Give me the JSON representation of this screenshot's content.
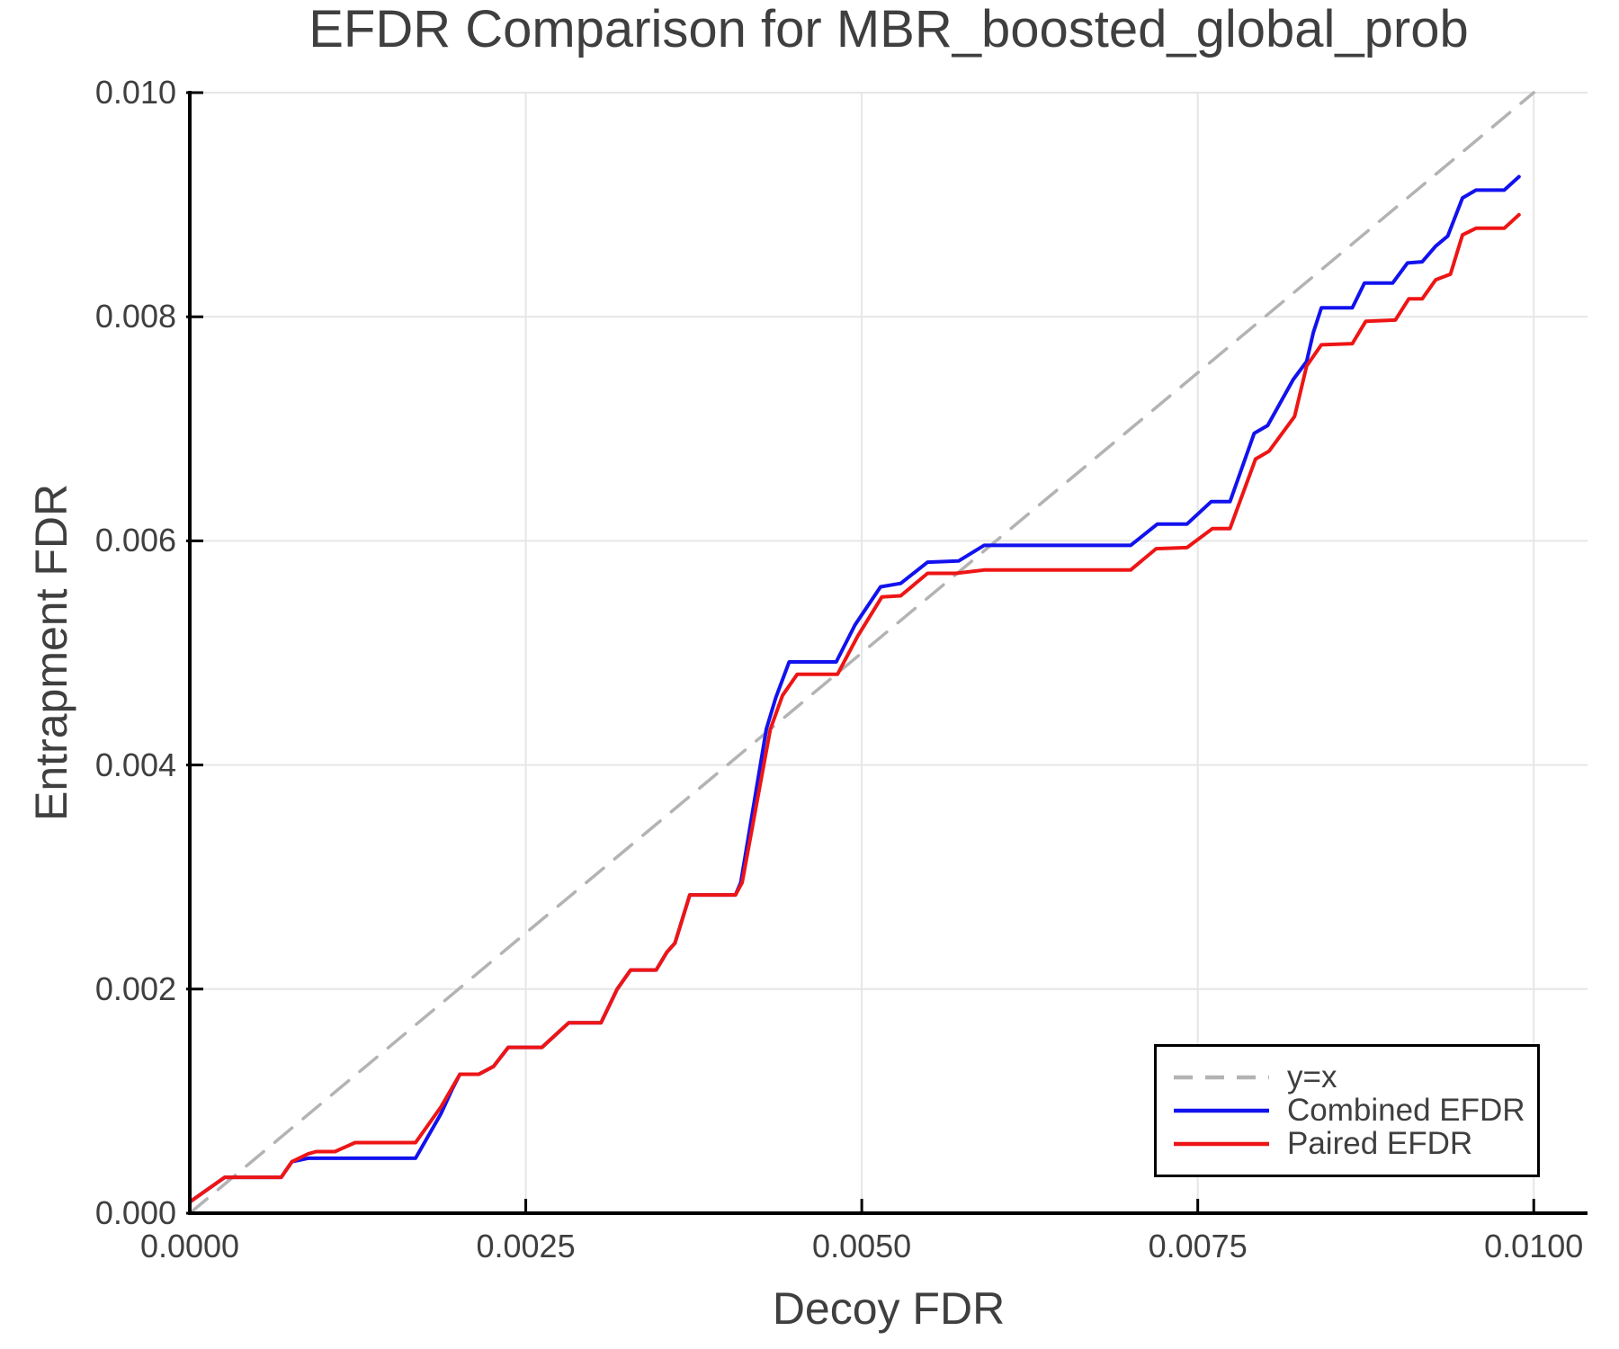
{
  "colors": {
    "background": "#ffffff",
    "text": "#3f3f3f",
    "spine": "#000000",
    "grid": "#e6e6e6",
    "identity_line": "#b3b3b3",
    "combined_efdr": "#1212ee",
    "paired_efdr": "#ee1515"
  },
  "chart_data": {
    "type": "line",
    "title": "EFDR Comparison for MBR_boosted_global_prob",
    "xlabel": "Decoy FDR",
    "ylabel": "Entrapment FDR",
    "xlim": [
      0,
      0.0104
    ],
    "ylim": [
      0,
      0.01
    ],
    "grid": true,
    "legend_position": "lower right",
    "x_ticks": [
      {
        "value": 0.0,
        "label": "0.0000"
      },
      {
        "value": 0.0025,
        "label": "0.0025"
      },
      {
        "value": 0.005,
        "label": "0.0050"
      },
      {
        "value": 0.0075,
        "label": "0.0075"
      },
      {
        "value": 0.01,
        "label": "0.0100"
      }
    ],
    "y_ticks": [
      {
        "value": 0.0,
        "label": "0.000"
      },
      {
        "value": 0.002,
        "label": "0.002"
      },
      {
        "value": 0.004,
        "label": "0.004"
      },
      {
        "value": 0.006,
        "label": "0.006"
      },
      {
        "value": 0.008,
        "label": "0.008"
      },
      {
        "value": 0.01,
        "label": "0.010"
      }
    ],
    "series": [
      {
        "name": "y=x",
        "color": "#b3b3b3",
        "style": "dashed",
        "width": 3.5,
        "points": [
          [
            0.0,
            0.0
          ],
          [
            0.01,
            0.01
          ]
        ]
      },
      {
        "name": "Combined EFDR",
        "color": "#1212ee",
        "style": "solid",
        "width": 4,
        "points": [
          [
            0.0,
            0.0001
          ],
          [
            0.00026,
            0.00032
          ],
          [
            0.00068,
            0.00032
          ],
          [
            0.00076,
            0.00046
          ],
          [
            0.00088,
            0.00049
          ],
          [
            0.00168,
            0.00049
          ],
          [
            0.00187,
            0.00089
          ],
          [
            0.00195,
            0.0011
          ],
          [
            0.00201,
            0.00124
          ],
          [
            0.00215,
            0.00124
          ],
          [
            0.00226,
            0.00131
          ],
          [
            0.00237,
            0.00148
          ],
          [
            0.00262,
            0.00148
          ],
          [
            0.00282,
            0.0017
          ],
          [
            0.00306,
            0.0017
          ],
          [
            0.00318,
            0.002
          ],
          [
            0.00328,
            0.00217
          ],
          [
            0.00347,
            0.00217
          ],
          [
            0.00355,
            0.00233
          ],
          [
            0.00361,
            0.00241
          ],
          [
            0.00372,
            0.00284
          ],
          [
            0.00406,
            0.00284
          ],
          [
            0.0041,
            0.00295
          ],
          [
            0.00429,
            0.00432
          ],
          [
            0.00436,
            0.0046
          ],
          [
            0.00446,
            0.00492
          ],
          [
            0.00481,
            0.00492
          ],
          [
            0.00495,
            0.00525
          ],
          [
            0.00514,
            0.00559
          ],
          [
            0.00529,
            0.00562
          ],
          [
            0.00549,
            0.00581
          ],
          [
            0.00572,
            0.00582
          ],
          [
            0.00591,
            0.00596
          ],
          [
            0.007,
            0.00596
          ],
          [
            0.0072,
            0.00615
          ],
          [
            0.00742,
            0.00615
          ],
          [
            0.0076,
            0.00635
          ],
          [
            0.00774,
            0.00635
          ],
          [
            0.00792,
            0.00696
          ],
          [
            0.00802,
            0.00703
          ],
          [
            0.00821,
            0.00744
          ],
          [
            0.00831,
            0.0076
          ],
          [
            0.00836,
            0.00786
          ],
          [
            0.00842,
            0.00808
          ],
          [
            0.00865,
            0.00808
          ],
          [
            0.00874,
            0.0083
          ],
          [
            0.00895,
            0.0083
          ],
          [
            0.00906,
            0.00848
          ],
          [
            0.00917,
            0.00849
          ],
          [
            0.00927,
            0.00863
          ],
          [
            0.00936,
            0.00872
          ],
          [
            0.00947,
            0.00906
          ],
          [
            0.00957,
            0.00913
          ],
          [
            0.00978,
            0.00913
          ],
          [
            0.00989,
            0.00925
          ]
        ]
      },
      {
        "name": "Paired EFDR",
        "color": "#ee1515",
        "style": "solid",
        "width": 4,
        "points": [
          [
            0.0,
            0.0001
          ],
          [
            0.00026,
            0.00032
          ],
          [
            0.00068,
            0.00032
          ],
          [
            0.00076,
            0.00046
          ],
          [
            0.00088,
            0.00053
          ],
          [
            0.00094,
            0.00055
          ],
          [
            0.00108,
            0.00055
          ],
          [
            0.00123,
            0.00063
          ],
          [
            0.00168,
            0.00063
          ],
          [
            0.00187,
            0.00095
          ],
          [
            0.00201,
            0.00124
          ],
          [
            0.00215,
            0.00124
          ],
          [
            0.00226,
            0.00131
          ],
          [
            0.00237,
            0.00148
          ],
          [
            0.00262,
            0.00148
          ],
          [
            0.00282,
            0.0017
          ],
          [
            0.00306,
            0.0017
          ],
          [
            0.00318,
            0.002
          ],
          [
            0.00328,
            0.00217
          ],
          [
            0.00347,
            0.00217
          ],
          [
            0.00355,
            0.00233
          ],
          [
            0.00361,
            0.00241
          ],
          [
            0.00372,
            0.00284
          ],
          [
            0.00406,
            0.00284
          ],
          [
            0.00411,
            0.00295
          ],
          [
            0.00432,
            0.00432
          ],
          [
            0.00441,
            0.00462
          ],
          [
            0.00452,
            0.00481
          ],
          [
            0.00482,
            0.00481
          ],
          [
            0.00497,
            0.00515
          ],
          [
            0.00515,
            0.0055
          ],
          [
            0.00529,
            0.00551
          ],
          [
            0.00549,
            0.00571
          ],
          [
            0.0057,
            0.00571
          ],
          [
            0.00591,
            0.00574
          ],
          [
            0.007,
            0.00574
          ],
          [
            0.00719,
            0.00593
          ],
          [
            0.00742,
            0.00594
          ],
          [
            0.00761,
            0.00611
          ],
          [
            0.00774,
            0.00611
          ],
          [
            0.00793,
            0.00673
          ],
          [
            0.00803,
            0.0068
          ],
          [
            0.00822,
            0.00711
          ],
          [
            0.00831,
            0.00756
          ],
          [
            0.00842,
            0.00775
          ],
          [
            0.00865,
            0.00776
          ],
          [
            0.00875,
            0.00796
          ],
          [
            0.00897,
            0.00797
          ],
          [
            0.00907,
            0.00816
          ],
          [
            0.00917,
            0.00816
          ],
          [
            0.00927,
            0.00833
          ],
          [
            0.00938,
            0.00838
          ],
          [
            0.00947,
            0.00873
          ],
          [
            0.00957,
            0.00879
          ],
          [
            0.00978,
            0.00879
          ],
          [
            0.00989,
            0.00891
          ]
        ]
      }
    ],
    "legend": {
      "items": [
        {
          "label": "y=x",
          "color": "#b3b3b3",
          "dashed": true
        },
        {
          "label": "Combined EFDR",
          "color": "#1212ee",
          "dashed": false
        },
        {
          "label": "Paired EFDR",
          "color": "#ee1515",
          "dashed": false
        }
      ]
    }
  }
}
